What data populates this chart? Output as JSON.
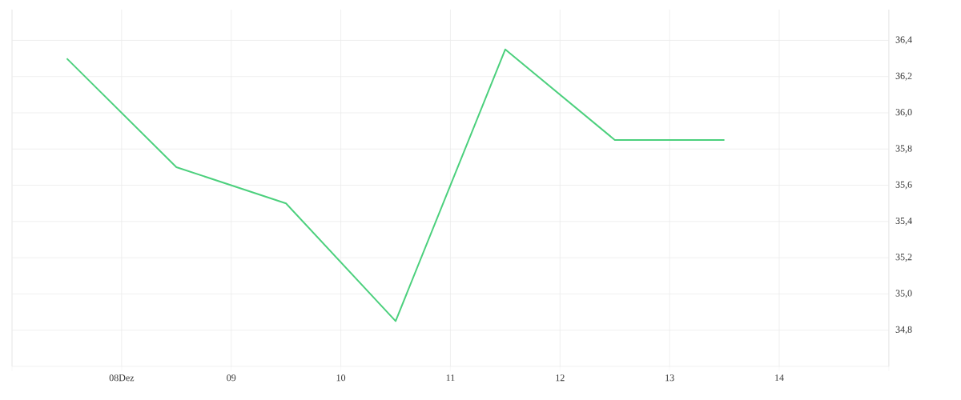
{
  "chart_data": {
    "type": "line",
    "x": [
      7.5,
      8.5,
      9.5,
      10.5,
      11.5,
      12.5,
      13.5
    ],
    "series": [
      {
        "color": "#4cd07d",
        "values": [
          36.3,
          35.7,
          35.5,
          34.85,
          36.35,
          35.85,
          35.85
        ]
      }
    ],
    "xlim": [
      7,
      15
    ],
    "xticks": [
      {
        "value": 7,
        "label": null
      },
      {
        "value": 8,
        "label": "08Dez"
      },
      {
        "value": 9,
        "label": "09"
      },
      {
        "value": 10,
        "label": "10"
      },
      {
        "value": 11,
        "label": "11"
      },
      {
        "value": 12,
        "label": "12"
      },
      {
        "value": 13,
        "label": "13"
      },
      {
        "value": 14,
        "label": "14"
      },
      {
        "value": 15,
        "label": null
      }
    ],
    "ylim": [
      34.6,
      36.57
    ],
    "yticks": [
      {
        "value": 34.6,
        "label": null
      },
      {
        "value": 34.8,
        "label": "34,8"
      },
      {
        "value": 35.0,
        "label": "35,0"
      },
      {
        "value": 35.2,
        "label": "35,2"
      },
      {
        "value": 35.4,
        "label": "35,4"
      },
      {
        "value": 35.6,
        "label": "35,6"
      },
      {
        "value": 35.8,
        "label": "35,8"
      },
      {
        "value": 36.0,
        "label": "36,0"
      },
      {
        "value": 36.2,
        "label": "36,2"
      },
      {
        "value": 36.4,
        "label": "36,4"
      }
    ],
    "grid": true,
    "marker": "none",
    "line_style": "solid"
  }
}
